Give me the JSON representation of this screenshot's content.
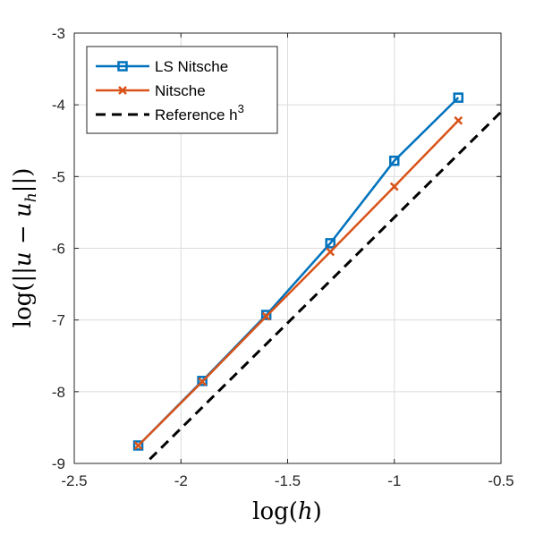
{
  "chart_data": {
    "type": "line",
    "xlabel": "log(h)",
    "ylabel": "log(||u − u_h||)",
    "xlim": [
      -2.5,
      -0.5
    ],
    "ylim": [
      -9,
      -3
    ],
    "xticks": [
      -2.5,
      -2,
      -1.5,
      -1,
      -0.5
    ],
    "xtick_labels": [
      "-2.5",
      "-2",
      "-1.5",
      "-1",
      "-0.5"
    ],
    "yticks": [
      -9,
      -8,
      -7,
      -6,
      -5,
      -4,
      -3
    ],
    "ytick_labels": [
      "-9",
      "-8",
      "-7",
      "-6",
      "-5",
      "-4",
      "-3"
    ],
    "grid": true,
    "legend_position": "top-left",
    "series": [
      {
        "name": "LS Nitsche",
        "color": "#0072BD",
        "marker": "square",
        "line_style": "solid",
        "x": [
          -2.2,
          -1.9,
          -1.6,
          -1.3,
          -1.0,
          -0.7
        ],
        "y": [
          -8.75,
          -7.85,
          -6.93,
          -5.93,
          -4.78,
          -3.9
        ]
      },
      {
        "name": "Nitsche",
        "color": "#D95319",
        "marker": "x",
        "line_style": "solid",
        "x": [
          -2.2,
          -1.9,
          -1.6,
          -1.3,
          -1.0,
          -0.7
        ],
        "y": [
          -8.75,
          -7.86,
          -6.95,
          -6.05,
          -5.14,
          -4.22
        ]
      },
      {
        "name": "Reference h^3",
        "color": "#000000",
        "marker": "none",
        "line_style": "dashed",
        "x": [
          -2.2,
          -0.5
        ],
        "y": [
          -9.1,
          -4.1
        ]
      }
    ]
  }
}
